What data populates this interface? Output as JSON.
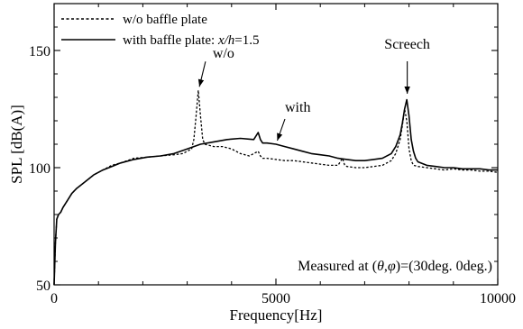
{
  "chart_data": {
    "type": "line",
    "xlabel": "Frequency[Hz]",
    "ylabel": "SPL [dB(A)]",
    "xlim": [
      0,
      10000
    ],
    "ylim": [
      50,
      170
    ],
    "x_ticks": [
      0,
      5000,
      10000
    ],
    "x_tick_labels": [
      "0",
      "5000",
      "10000"
    ],
    "y_ticks": [
      50,
      100,
      150
    ],
    "y_tick_labels": [
      "50",
      "100",
      "150"
    ],
    "grid": false,
    "legend_position": "top-left",
    "series": [
      {
        "name": "w/o baffle plate",
        "style": "dashed",
        "x": [
          0,
          30,
          60,
          100,
          150,
          200,
          300,
          400,
          500,
          700,
          900,
          1100,
          1300,
          1500,
          1800,
          2100,
          2400,
          2700,
          2900,
          3000,
          3100,
          3150,
          3200,
          3250,
          3300,
          3350,
          3400,
          3600,
          3800,
          4000,
          4200,
          4400,
          4600,
          4650,
          4700,
          4800,
          5000,
          5200,
          5400,
          5600,
          5800,
          6000,
          6200,
          6400,
          6500,
          6550,
          6600,
          6800,
          7000,
          7200,
          7400,
          7600,
          7700,
          7800,
          7850,
          7900,
          7950,
          8000,
          8050,
          8100,
          8200,
          8400,
          8600,
          8800,
          9000,
          9200,
          9400,
          9600,
          9800,
          10000
        ],
        "y": [
          50,
          68,
          78,
          80,
          81,
          83,
          86,
          89,
          91,
          94,
          97,
          99,
          101,
          102,
          104,
          104.5,
          105,
          105.5,
          106,
          107,
          108,
          112,
          122,
          133,
          122,
          112,
          110,
          109,
          109,
          108,
          106,
          105,
          107,
          105,
          104,
          104,
          103.5,
          103,
          103,
          102.5,
          102,
          101.5,
          101,
          101,
          104,
          101,
          100.5,
          100,
          100,
          100.5,
          101,
          103,
          106,
          112,
          118,
          125,
          120,
          108,
          103,
          101,
          100.5,
          100,
          99.5,
          99,
          99.5,
          99,
          99,
          98.5,
          98.5,
          98
        ]
      },
      {
        "name": "with baffle plate: x/h=1.5",
        "style": "solid",
        "x": [
          0,
          30,
          60,
          100,
          150,
          200,
          300,
          400,
          500,
          700,
          900,
          1100,
          1300,
          1500,
          1800,
          2100,
          2400,
          2700,
          3000,
          3300,
          3600,
          3900,
          4200,
          4500,
          4600,
          4650,
          4700,
          4800,
          5000,
          5200,
          5400,
          5600,
          5800,
          6000,
          6200,
          6400,
          6600,
          6800,
          7000,
          7200,
          7400,
          7600,
          7700,
          7800,
          7850,
          7900,
          7950,
          8000,
          8050,
          8100,
          8150,
          8200,
          8400,
          8600,
          8800,
          9000,
          9200,
          9400,
          9600,
          9800,
          10000
        ],
        "y": [
          50,
          68,
          78,
          80,
          81,
          83,
          86,
          89,
          91,
          94,
          97,
          99,
          100.5,
          102,
          103.5,
          104.5,
          105,
          106,
          108,
          110,
          111,
          112,
          112.5,
          112,
          115,
          112,
          110.5,
          110.5,
          110,
          109,
          108,
          107,
          106,
          105.5,
          105,
          104,
          103.5,
          103,
          103,
          103.5,
          104,
          106,
          109,
          114,
          119,
          125,
          129,
          122,
          112,
          107,
          104,
          102.5,
          101,
          100.5,
          100,
          100,
          99.5,
          99.5,
          99.5,
          99,
          99
        ]
      }
    ],
    "annotations": [
      {
        "text": "w/o",
        "target_x": 3250,
        "target_y": 133
      },
      {
        "text": "with",
        "target_x": 5000,
        "target_y": 110
      },
      {
        "text": "Screech",
        "target_x": 7960,
        "target_y": 130
      }
    ],
    "note": {
      "prefix": "Measured at (",
      "theta": "θ",
      "comma": ",",
      "phi": "φ",
      "suffix": ")=(30deg. 0deg.)"
    }
  },
  "legend": {
    "entries": [
      {
        "label": "w/o baffle plate"
      },
      {
        "label_prefix": "with baffle plate: ",
        "label_italic": "x/h",
        "label_suffix": "=1.5"
      }
    ]
  }
}
